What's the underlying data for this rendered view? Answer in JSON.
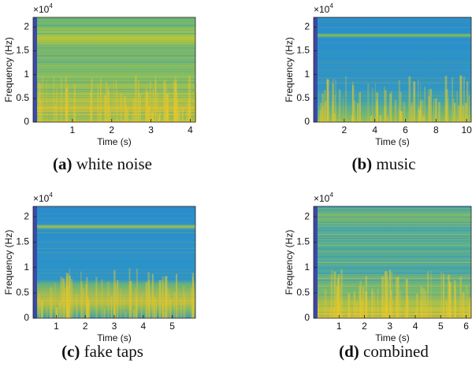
{
  "chart_data": [
    {
      "type": "spectrogram",
      "x_label": "Time (s)",
      "y_label": "Frequency (Hz)",
      "y_scale_base": "×10",
      "y_scale_exponent": "4",
      "xlim": [
        0,
        4.13
      ],
      "xticks": [
        1,
        2,
        3,
        4
      ],
      "ylim": [
        0,
        22050
      ],
      "yticks": [
        0,
        {
          "value": 5000,
          "label": "0.5"
        },
        {
          "value": 10000,
          "label": "1"
        },
        {
          "value": 15000,
          "label": "1.5"
        },
        {
          "value": 20000,
          "label": "2"
        }
      ],
      "caption_label": "(a)",
      "caption": "white noise"
    },
    {
      "type": "spectrogram",
      "x_label": "Time (s)",
      "y_label": "Frequency (Hz)",
      "y_scale_base": "×10",
      "y_scale_exponent": "4",
      "xlim": [
        0,
        10.3
      ],
      "xticks": [
        2,
        4,
        6,
        8,
        10
      ],
      "ylim": [
        0,
        22050
      ],
      "yticks": [
        0,
        {
          "value": 5000,
          "label": "0.5"
        },
        {
          "value": 10000,
          "label": "1"
        },
        {
          "value": 15000,
          "label": "1.5"
        },
        {
          "value": 20000,
          "label": "2"
        }
      ],
      "caption_label": "(b)",
      "caption": "music"
    },
    {
      "type": "spectrogram",
      "x_label": "Time (s)",
      "y_label": "Frequency (Hz)",
      "y_scale_base": "×10",
      "y_scale_exponent": "4",
      "xlim": [
        0.2,
        5.8
      ],
      "xticks": [
        1,
        2,
        3,
        4,
        5
      ],
      "ylim": [
        0,
        22050
      ],
      "yticks": [
        0,
        {
          "value": 5000,
          "label": "0.5"
        },
        {
          "value": 10000,
          "label": "1"
        },
        {
          "value": 15000,
          "label": "1.5"
        },
        {
          "value": 20000,
          "label": "2"
        }
      ],
      "caption_label": "(c)",
      "caption": "fake taps"
    },
    {
      "type": "spectrogram",
      "x_label": "Time (s)",
      "y_label": "Frequency (Hz)",
      "y_scale_base": "×10",
      "y_scale_exponent": "4",
      "xlim": [
        0,
        6.2
      ],
      "xticks": [
        1,
        2,
        3,
        4,
        5,
        6
      ],
      "ylim": [
        0,
        22050
      ],
      "yticks": [
        0,
        {
          "value": 5000,
          "label": "0.5"
        },
        {
          "value": 10000,
          "label": "1"
        },
        {
          "value": 15000,
          "label": "1.5"
        },
        {
          "value": 20000,
          "label": "2"
        }
      ],
      "caption_label": "(d)",
      "caption": "combined"
    }
  ]
}
